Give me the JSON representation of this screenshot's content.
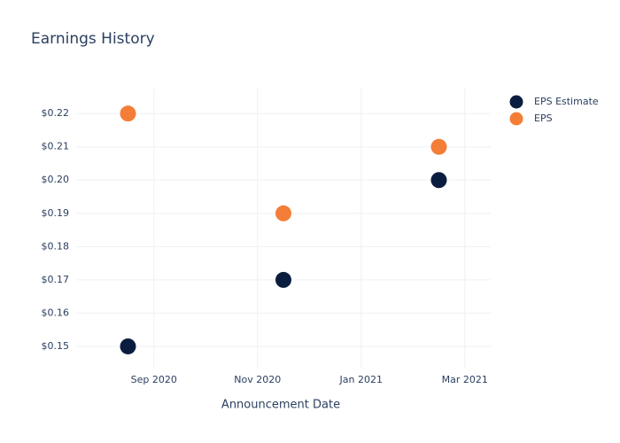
{
  "chart_data": {
    "type": "scatter",
    "title": "Earnings History",
    "x_label": "Announcement Date",
    "x": [
      "2020-08",
      "2020-11",
      "2021-02"
    ],
    "series": [
      {
        "name": "EPS Estimate",
        "color": "#0b1d3f",
        "values": [
          0.15,
          0.17,
          0.2
        ]
      },
      {
        "name": "EPS",
        "color": "#f47e37",
        "values": [
          0.22,
          0.19,
          0.21
        ]
      }
    ],
    "xlim": [
      "2020-07",
      "2021-03"
    ],
    "xticks": [
      {
        "value": "2020-09",
        "label": "Sep 2020"
      },
      {
        "value": "2020-11",
        "label": "Nov 2020"
      },
      {
        "value": "2021-01",
        "label": "Jan 2021"
      },
      {
        "value": "2021-03",
        "label": "Mar 2021"
      }
    ],
    "ylim": [
      0.1436,
      0.2275
    ],
    "yticks": [
      {
        "value": 0.15,
        "label": "$0.15"
      },
      {
        "value": 0.16,
        "label": "$0.16"
      },
      {
        "value": 0.17,
        "label": "$0.17"
      },
      {
        "value": 0.18,
        "label": "$0.18"
      },
      {
        "value": 0.19,
        "label": "$0.19"
      },
      {
        "value": 0.2,
        "label": "$0.20"
      },
      {
        "value": 0.21,
        "label": "$0.21"
      },
      {
        "value": 0.22,
        "label": "$0.22"
      }
    ],
    "grid": true,
    "legend": "top-right"
  }
}
